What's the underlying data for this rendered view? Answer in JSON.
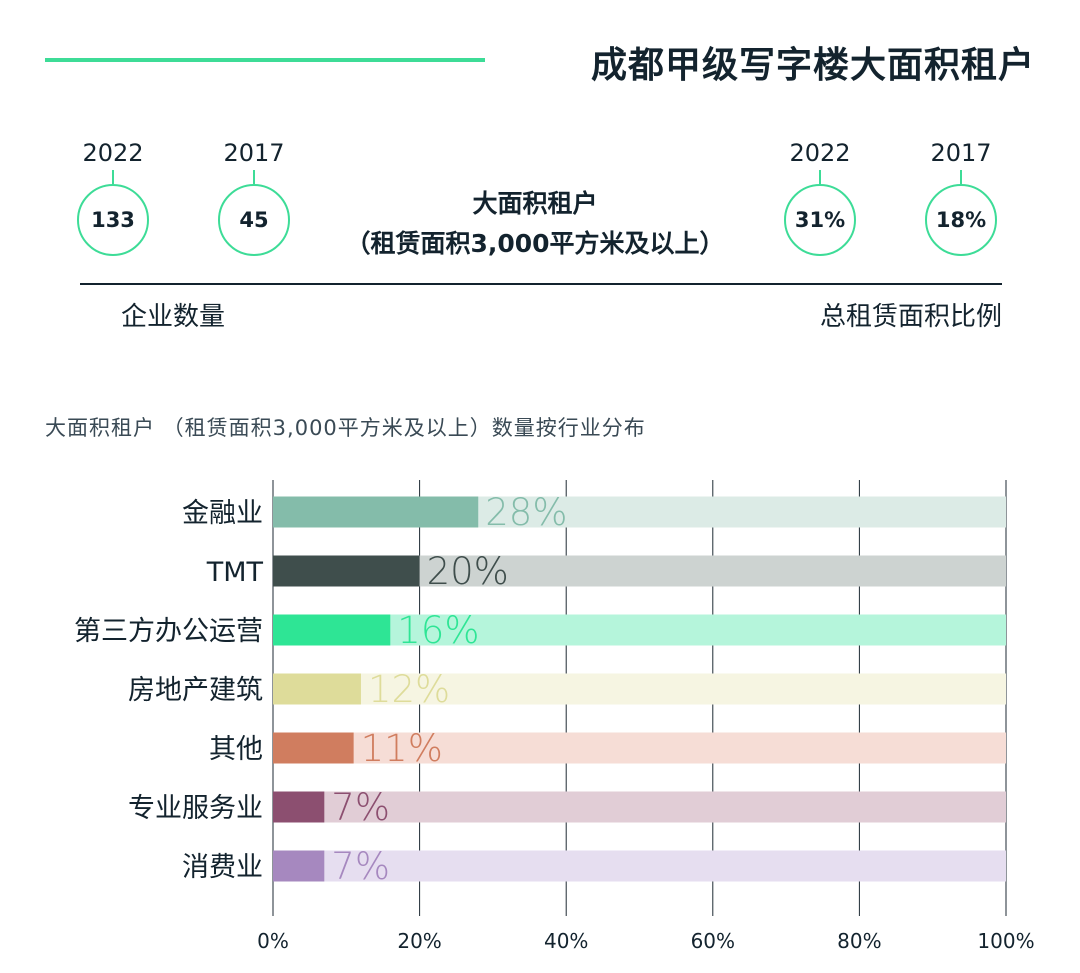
{
  "header": {
    "title": "成都甲级写字楼大面积租户"
  },
  "stats": {
    "count_2022_year": "2022",
    "count_2022_value": "133",
    "count_2017_year": "2017",
    "count_2017_value": "45",
    "center_line1": "大面积租户",
    "center_line2": "（租赁面积3,000平方米及以上）",
    "ratio_2022_year": "2022",
    "ratio_2022_value": "31%",
    "ratio_2017_year": "2017",
    "ratio_2017_value": "18%",
    "left_caption": "企业数量",
    "right_caption": "总租赁面积比例"
  },
  "chart_subtitle": "大面积租户 （租赁面积3,000平方米及以上）数量按行业分布",
  "colors": {
    "accent": "#3ddc97",
    "text": "#13232e"
  },
  "chart_data": {
    "type": "bar",
    "orientation": "horizontal",
    "categories": [
      "金融业",
      "TMT",
      "第三方办公运营",
      "房地产建筑",
      "其他",
      "专业服务业",
      "消费业"
    ],
    "values": [
      28,
      20,
      16,
      12,
      11,
      7,
      7
    ],
    "value_labels": [
      "28%",
      "20%",
      "16%",
      "12%",
      "11%",
      "7%",
      "7%"
    ],
    "bar_colors": [
      "#84bcaa",
      "#3f4e4c",
      "#2ee595",
      "#dedc9a",
      "#d07d5f",
      "#8c4f70",
      "#a688bf"
    ],
    "track_colors": [
      "#dcebe6",
      "#cdd3d1",
      "#b5f5db",
      "#f6f5e2",
      "#f6ddd6",
      "#e1cdd6",
      "#e6def0"
    ],
    "xlim": [
      0,
      100
    ],
    "xticks": [
      "0%",
      "20%",
      "40%",
      "60%",
      "80%",
      "100%"
    ],
    "grid": true
  }
}
